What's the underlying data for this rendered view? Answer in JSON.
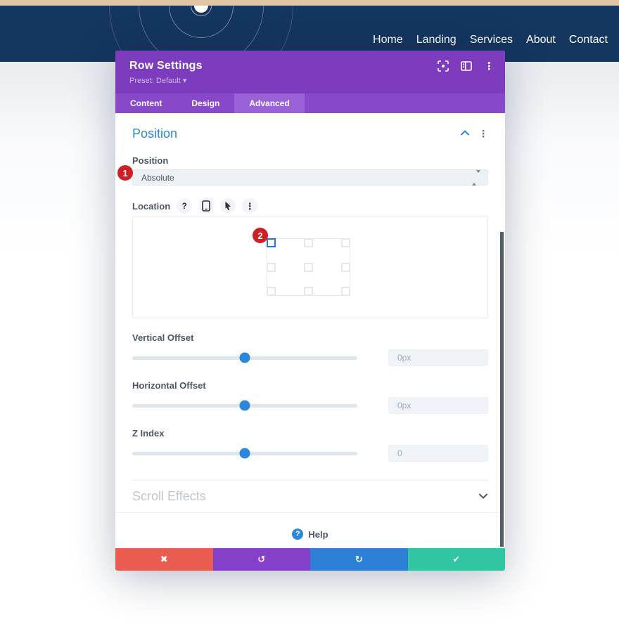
{
  "nav": {
    "items": [
      "Home",
      "Landing",
      "Services",
      "About",
      "Contact"
    ]
  },
  "header_background": {
    "accent_strip_color": "#dfc7a6",
    "navbar_color": "#14365f"
  },
  "modal": {
    "title": "Row Settings",
    "preset": {
      "label": "Preset: Default",
      "caret": "▾"
    },
    "header_icons": {
      "menu_glyph": "⋮"
    },
    "tabs": [
      {
        "label": "Content"
      },
      {
        "label": "Design"
      },
      {
        "label": "Advanced"
      }
    ],
    "active_tab": "Advanced",
    "position_section": {
      "title": "Position",
      "menu_glyph": "⋮",
      "position_field": {
        "label": "Position",
        "value": "Absolute"
      },
      "location_field": {
        "label": "Location",
        "selected": "top-left",
        "help_glyph": "?",
        "menu_glyph": "⋮"
      },
      "vertical_offset": {
        "label": "Vertical Offset",
        "value": "0px",
        "slider_percent": 50
      },
      "horizontal_offset": {
        "label": "Horizontal Offset",
        "value": "0px",
        "slider_percent": 50
      },
      "z_index": {
        "label": "Z Index",
        "value": "0",
        "slider_percent": 50
      }
    },
    "scroll_effects_section": {
      "title": "Scroll Effects"
    },
    "help": {
      "glyph": "?",
      "label": "Help"
    },
    "footer": {
      "buttons": [
        {
          "name": "discard",
          "glyph": "✖",
          "color": "#ea5b50"
        },
        {
          "name": "undo",
          "glyph": "↺",
          "color": "#8540c9"
        },
        {
          "name": "redo",
          "glyph": "↻",
          "color": "#2e80d7"
        },
        {
          "name": "save",
          "glyph": "✔",
          "color": "#2fc6a1"
        }
      ]
    }
  },
  "annotations": {
    "badge_color": "#cf1e24",
    "steps": [
      {
        "number": "1"
      },
      {
        "number": "2"
      }
    ]
  },
  "colors": {
    "accent_blue": "#2b87da",
    "modal_header_purple": "#7d3bbd",
    "tabbar_purple": "#8749c9",
    "active_tab_purple": "#9a62d6",
    "selected_cell_blue": "#2979c9",
    "scrollbar_gray": "#525c6a"
  }
}
